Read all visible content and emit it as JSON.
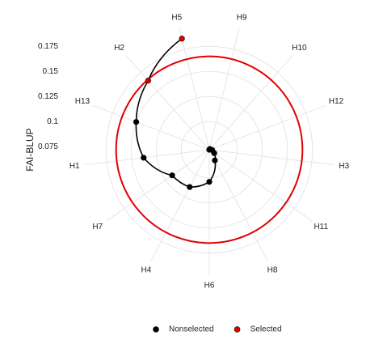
{
  "chart_data": {
    "type": "polar-line",
    "y_label": "FAI-BLUP",
    "categories": [
      "H9",
      "H10",
      "H12",
      "H3",
      "H11",
      "H8",
      "H6",
      "H4",
      "H7",
      "H1",
      "H13",
      "H2",
      "H5"
    ],
    "series": [
      {
        "name": "Nonselected",
        "color": "#000000",
        "values": [
          0.072,
          0.073,
          0.073,
          0.075,
          0.078,
          0.084,
          0.104,
          0.114,
          0.117,
          0.138,
          0.15,
          null,
          null
        ]
      },
      {
        "name": "Selected",
        "color": "#e00000",
        "values": [
          null,
          null,
          null,
          null,
          null,
          null,
          null,
          null,
          null,
          null,
          null,
          0.164,
          0.186
        ]
      }
    ],
    "cutoff": 0.165,
    "cutoff_color": "#e00000",
    "ylim": [
      0.072,
      0.197
    ],
    "yticks": [
      0.075,
      0.1,
      0.125,
      0.15,
      0.175
    ],
    "grid": true,
    "legend": "bottom"
  }
}
